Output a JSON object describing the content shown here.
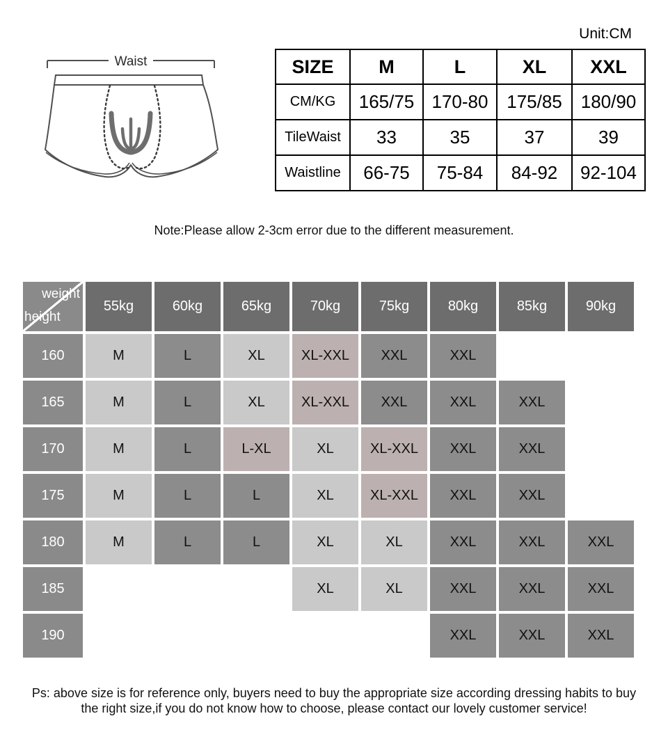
{
  "unit_label": "Unit:CM",
  "diagram": {
    "label": "Waist"
  },
  "size_table": {
    "header": [
      "SIZE",
      "M",
      "L",
      "XL",
      "XXL"
    ],
    "rows": [
      [
        "CM/KG",
        "165/75",
        "170-80",
        "175/85",
        "180/90"
      ],
      [
        "TileWaist",
        "33",
        "35",
        "37",
        "39"
      ],
      [
        "Waistline",
        "66-75",
        "75-84",
        "84-92",
        "92-104"
      ]
    ]
  },
  "note": "Note:Please allow 2-3cm error due to the different measurement.",
  "matrix": {
    "corner": {
      "top_right": "weight",
      "bottom_left": "height"
    },
    "columns": [
      "55kg",
      "60kg",
      "65kg",
      "70kg",
      "75kg",
      "80kg",
      "85kg",
      "90kg"
    ],
    "rows": [
      {
        "height": "160",
        "cells": [
          {
            "size": "M",
            "tone": "light"
          },
          {
            "size": "L",
            "tone": "medium"
          },
          {
            "size": "XL",
            "tone": "light"
          },
          {
            "size": "XL-XXL",
            "tone": "pink"
          },
          {
            "size": "XXL",
            "tone": "medium"
          },
          {
            "size": "XXL",
            "tone": "medium"
          },
          {
            "size": "",
            "tone": "empty"
          },
          {
            "size": "",
            "tone": "empty"
          }
        ]
      },
      {
        "height": "165",
        "cells": [
          {
            "size": "M",
            "tone": "light"
          },
          {
            "size": "L",
            "tone": "medium"
          },
          {
            "size": "XL",
            "tone": "light"
          },
          {
            "size": "XL-XXL",
            "tone": "pink"
          },
          {
            "size": "XXL",
            "tone": "medium"
          },
          {
            "size": "XXL",
            "tone": "medium"
          },
          {
            "size": "XXL",
            "tone": "medium"
          },
          {
            "size": "",
            "tone": "empty"
          }
        ]
      },
      {
        "height": "170",
        "cells": [
          {
            "size": "M",
            "tone": "light"
          },
          {
            "size": "L",
            "tone": "medium"
          },
          {
            "size": "L-XL",
            "tone": "pink"
          },
          {
            "size": "XL",
            "tone": "light"
          },
          {
            "size": "XL-XXL",
            "tone": "pink"
          },
          {
            "size": "XXL",
            "tone": "medium"
          },
          {
            "size": "XXL",
            "tone": "medium"
          },
          {
            "size": "",
            "tone": "empty"
          }
        ]
      },
      {
        "height": "175",
        "cells": [
          {
            "size": "M",
            "tone": "light"
          },
          {
            "size": "L",
            "tone": "medium"
          },
          {
            "size": "L",
            "tone": "medium"
          },
          {
            "size": "XL",
            "tone": "light"
          },
          {
            "size": "XL-XXL",
            "tone": "pink"
          },
          {
            "size": "XXL",
            "tone": "medium"
          },
          {
            "size": "XXL",
            "tone": "medium"
          },
          {
            "size": "",
            "tone": "empty"
          }
        ]
      },
      {
        "height": "180",
        "cells": [
          {
            "size": "M",
            "tone": "light"
          },
          {
            "size": "L",
            "tone": "medium"
          },
          {
            "size": "L",
            "tone": "medium"
          },
          {
            "size": "XL",
            "tone": "light"
          },
          {
            "size": "XL",
            "tone": "light"
          },
          {
            "size": "XXL",
            "tone": "medium"
          },
          {
            "size": "XXL",
            "tone": "medium"
          },
          {
            "size": "XXL",
            "tone": "medium"
          }
        ]
      },
      {
        "height": "185",
        "cells": [
          {
            "size": "",
            "tone": "empty"
          },
          {
            "size": "",
            "tone": "empty"
          },
          {
            "size": "",
            "tone": "empty"
          },
          {
            "size": "XL",
            "tone": "light"
          },
          {
            "size": "XL",
            "tone": "light"
          },
          {
            "size": "XXL",
            "tone": "medium"
          },
          {
            "size": "XXL",
            "tone": "medium"
          },
          {
            "size": "XXL",
            "tone": "medium"
          }
        ]
      },
      {
        "height": "190",
        "cells": [
          {
            "size": "",
            "tone": "empty"
          },
          {
            "size": "",
            "tone": "empty"
          },
          {
            "size": "",
            "tone": "empty"
          },
          {
            "size": "",
            "tone": "empty"
          },
          {
            "size": "",
            "tone": "empty"
          },
          {
            "size": "XXL",
            "tone": "medium"
          },
          {
            "size": "XXL",
            "tone": "medium"
          },
          {
            "size": "XXL",
            "tone": "medium"
          }
        ]
      }
    ]
  },
  "ps_lines": [
    "Ps: above size is for reference only, buyers need to buy the appropriate size according dressing habits to buy",
    "the right size,if you do not know how to choose, please contact our lovely customer service!"
  ],
  "colors": {
    "header_bg": "#6d6d6d",
    "label_bg": "#8a8a8a",
    "cell_medium": "#8c8c8c",
    "cell_light": "#c9c9c9",
    "cell_pink": "#bcb1b0",
    "text_light": "#ffffff"
  }
}
